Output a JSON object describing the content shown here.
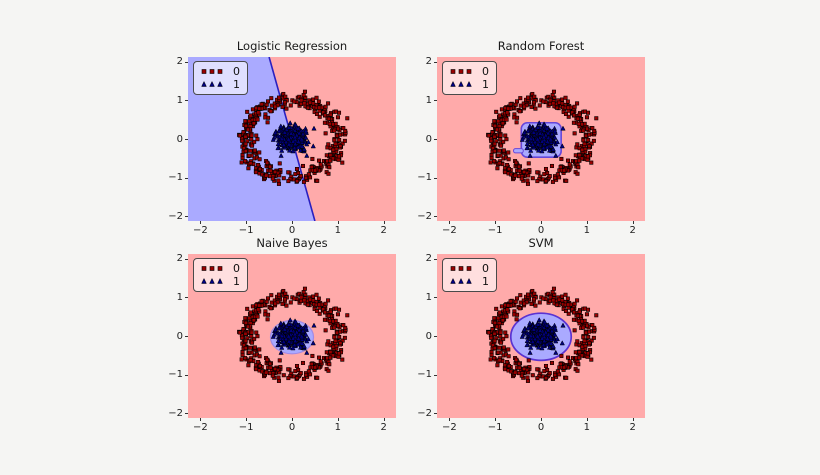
{
  "figure": {
    "background_color": "#f5f5f3"
  },
  "chart_data": {
    "type": "scatter",
    "layout": "2x2-subplots",
    "description": "Classifier decision-region comparison on a concentric-circles dataset",
    "xlim": [
      -2.27,
      2.27
    ],
    "ylim": [
      -2.12,
      2.12
    ],
    "x_ticks": [
      -2,
      -1,
      0,
      1,
      2
    ],
    "y_ticks": [
      2,
      1,
      0,
      -1,
      -2
    ],
    "grid": false,
    "legend_position": "upper-left",
    "colors": {
      "region_class0": "#ffaaaa",
      "region_class1": "#aaaaff"
    },
    "classes": [
      {
        "label": "0",
        "marker": "square",
        "fill": "#990000",
        "edge": "#000000",
        "n_points": 400,
        "distribution": {
          "shape": "ring",
          "center": [
            0,
            0
          ],
          "radius": 1.0,
          "noise_sigma": 0.11
        }
      },
      {
        "label": "1",
        "marker": "triangle-up",
        "fill": "#000080",
        "edge": "#000000",
        "n_points": 350,
        "distribution": {
          "shape": "gaussian-blob",
          "center": [
            0,
            0
          ],
          "sigma": 0.16,
          "clip_radius": 0.48
        }
      }
    ],
    "subplots": [
      {
        "title": "Logistic Regression",
        "decision_region": {
          "kind": "halfplane-left",
          "boundary_x_at_y_top": -0.5,
          "boundary_x_at_y_bottom": 0.5,
          "outline_color": "#2a20c0",
          "outline_width": 1.6
        }
      },
      {
        "title": "Random Forest",
        "decision_region": {
          "kind": "rounded-square",
          "x_range": [
            -0.43,
            0.44
          ],
          "y_range": [
            -0.47,
            0.42
          ],
          "corner_radius_px": 6,
          "tab_x_range": [
            -0.6,
            -0.43
          ],
          "tab_y_range": [
            -0.36,
            -0.25
          ],
          "outline_color": "#6647d9",
          "outline_width": 1.6
        }
      },
      {
        "title": "Naive Bayes",
        "decision_region": {
          "kind": "ellipse",
          "center": [
            0,
            -0.03
          ],
          "rx": 0.47,
          "ry": 0.43,
          "outline_color": "#a18ae6",
          "outline_width": 1.2
        }
      },
      {
        "title": "SVM",
        "decision_region": {
          "kind": "ellipse",
          "center": [
            0,
            -0.02
          ],
          "rx": 0.66,
          "ry": 0.61,
          "outline_color": "#5b33d1",
          "outline_width": 1.7
        }
      }
    ]
  }
}
